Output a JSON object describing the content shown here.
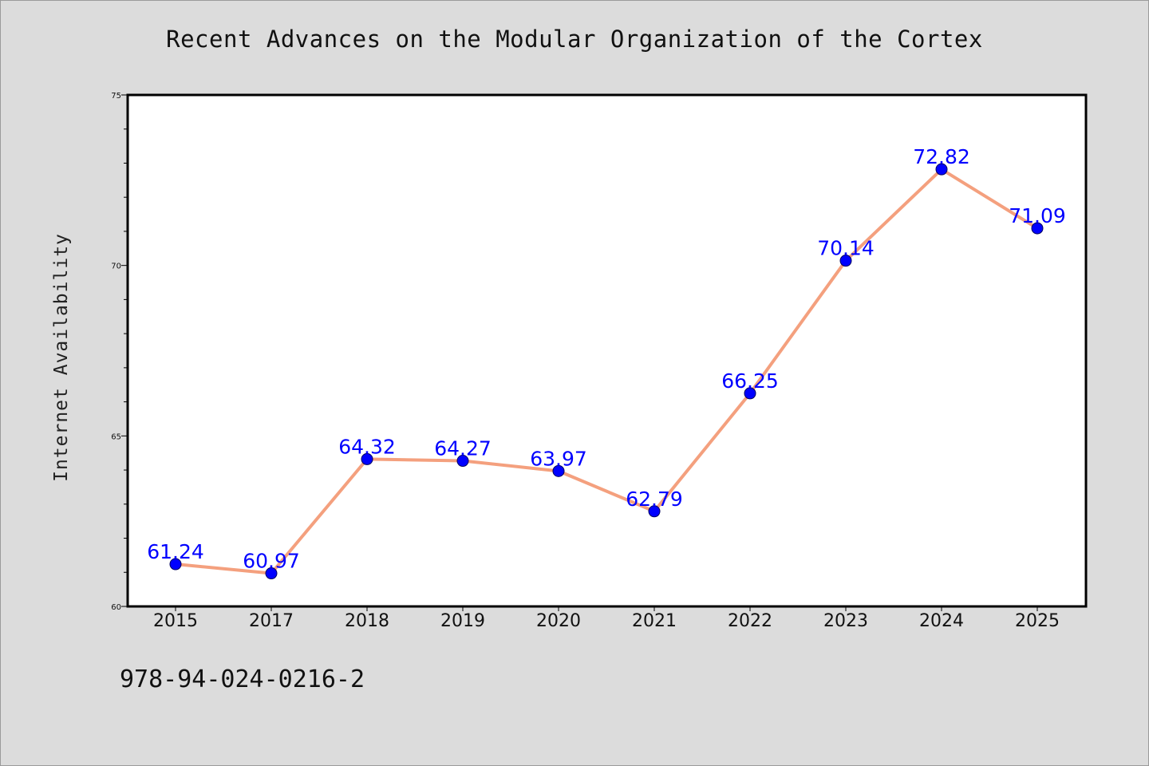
{
  "chart_data": {
    "type": "line",
    "title": "Recent Advances on the Modular Organization of the Cortex",
    "xlabel": "",
    "ylabel": "Internet Availability",
    "categories": [
      "2015",
      "2017",
      "2018",
      "2019",
      "2020",
      "2021",
      "2022",
      "2023",
      "2024",
      "2025"
    ],
    "series": [
      {
        "values": [
          61.24,
          60.97,
          64.32,
          64.27,
          63.97,
          62.79,
          66.25,
          70.14,
          72.82,
          71.09
        ],
        "labels": [
          "61.24",
          "60.97",
          "64.32",
          "64.27",
          "63.97",
          "62.79",
          "66.25",
          "70.14",
          "72.82",
          "71.09"
        ]
      }
    ],
    "ylim": [
      60,
      75
    ],
    "y_ticks": [
      "60",
      "65",
      "70",
      "75"
    ],
    "grid": false,
    "legend": "none",
    "colors": {
      "line": "#f4a07e",
      "marker": "#0000ff",
      "label": "#0000ff",
      "background": "#dcdcdc",
      "plot_background": "#ffffff"
    }
  },
  "footer": {
    "isbn": "978-94-024-0216-2"
  }
}
